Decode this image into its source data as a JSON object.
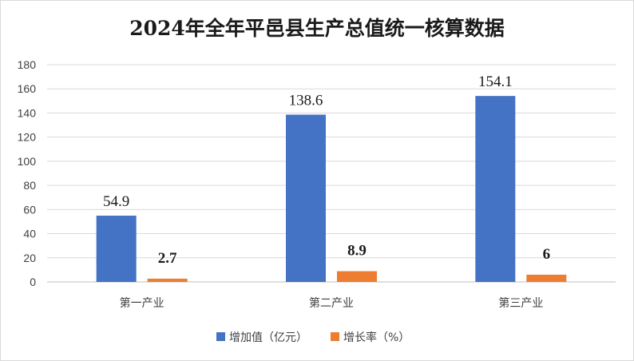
{
  "chart_data": {
    "type": "bar",
    "title": "2024年全年平邑县生产总值统一核算数据",
    "categories": [
      "第一产业",
      "第二产业",
      "第三产业"
    ],
    "series": [
      {
        "name": "增加值（亿元）",
        "values": [
          54.9,
          138.6,
          154.1
        ],
        "color": "#4472C4",
        "data_labels": [
          "54.9",
          "138.6",
          "154.1"
        ]
      },
      {
        "name": "增长率（%）",
        "values": [
          2.7,
          8.9,
          6
        ],
        "color": "#ED7D31",
        "data_labels": [
          "2.7",
          "8.9",
          "6"
        ]
      }
    ],
    "ylim": [
      0,
      180
    ],
    "yticks": [
      0,
      20,
      40,
      60,
      80,
      100,
      120,
      140,
      160,
      180
    ],
    "grid": true,
    "legend_position": "bottom"
  }
}
